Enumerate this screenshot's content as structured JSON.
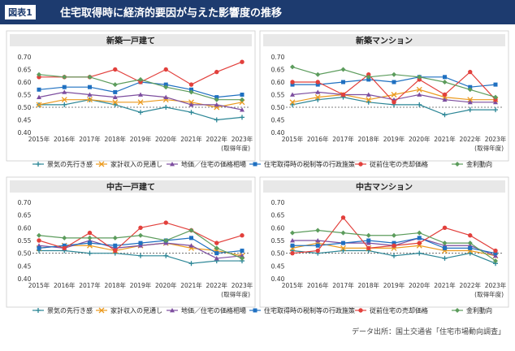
{
  "header": {
    "label": "図表1",
    "title": "住宅取得時に経済的要因が与えた影響度の推移"
  },
  "source": "データ出所：国土交通省「住宅市場動向調査」",
  "chart_data": [
    {
      "type": "line",
      "title": "新築一戸建て",
      "xlabel": "(取得年度)",
      "categories": [
        "2015年",
        "2016年",
        "2017年",
        "2018年",
        "2019年",
        "2020年",
        "2021年",
        "2022年",
        "2023年"
      ],
      "ylim": [
        0.4,
        0.7
      ],
      "yticks": [
        {
          "value": 0.4,
          "label": "0.40"
        },
        {
          "value": 0.45,
          "label": "0.45"
        },
        {
          "value": 0.5,
          "label": "0.50"
        },
        {
          "value": 0.55,
          "label": "0.55"
        },
        {
          "value": 0.6,
          "label": "0.60"
        },
        {
          "value": 0.65,
          "label": "0.65"
        },
        {
          "value": 0.7,
          "label": "0.70"
        }
      ],
      "reference_line": 0.5,
      "series": [
        {
          "name": "景気の先行き感",
          "color": "#2a8595",
          "values": [
            0.51,
            0.51,
            0.53,
            0.51,
            0.48,
            0.5,
            0.48,
            0.45,
            0.46
          ]
        },
        {
          "name": "家計収入の見通し",
          "color": "#eb9a1e",
          "values": [
            0.51,
            0.53,
            0.53,
            0.52,
            0.52,
            0.53,
            0.52,
            0.5,
            0.52
          ]
        },
        {
          "name": "地価／住宅の価格相場",
          "color": "#7d4e9f",
          "values": [
            0.54,
            0.56,
            0.55,
            0.54,
            0.55,
            0.54,
            0.51,
            0.51,
            0.49
          ]
        },
        {
          "name": "住宅取得時の税制等の行政施策",
          "color": "#1f70c1",
          "values": [
            0.57,
            0.58,
            0.58,
            0.56,
            0.6,
            0.59,
            0.57,
            0.54,
            0.55
          ]
        },
        {
          "name": "従前住宅の売却価格",
          "color": "#e2403c",
          "values": [
            0.62,
            0.62,
            0.62,
            0.65,
            0.6,
            0.65,
            0.59,
            0.64,
            0.68
          ]
        },
        {
          "name": "金利動向",
          "color": "#5c9c5c",
          "values": [
            0.63,
            0.62,
            0.62,
            0.59,
            0.61,
            0.58,
            0.56,
            0.53,
            0.53
          ]
        }
      ]
    },
    {
      "type": "line",
      "title": "新築マンション",
      "xlabel": "(取得年度)",
      "categories": [
        "2015年",
        "2016年",
        "2017年",
        "2018年",
        "2019年",
        "2020年",
        "2021年",
        "2022年",
        "2023年"
      ],
      "ylim": [
        0.4,
        0.7
      ],
      "yticks": [
        {
          "value": 0.4,
          "label": "0.40"
        },
        {
          "value": 0.45,
          "label": "0.45"
        },
        {
          "value": 0.5,
          "label": "0.50"
        },
        {
          "value": 0.55,
          "label": "0.55"
        },
        {
          "value": 0.6,
          "label": "0.60"
        },
        {
          "value": 0.65,
          "label": "0.65"
        },
        {
          "value": 0.7,
          "label": "0.70"
        }
      ],
      "reference_line": 0.5,
      "series": [
        {
          "name": "景気の先行き感",
          "color": "#2a8595",
          "values": [
            0.51,
            0.53,
            0.54,
            0.52,
            0.51,
            0.51,
            0.47,
            0.49,
            0.49
          ]
        },
        {
          "name": "家計収入の見通し",
          "color": "#eb9a1e",
          "values": [
            0.52,
            0.54,
            0.55,
            0.53,
            0.55,
            0.57,
            0.54,
            0.53,
            0.53
          ]
        },
        {
          "name": "地価／住宅の価格相場",
          "color": "#7d4e9f",
          "values": [
            0.55,
            0.56,
            0.55,
            0.55,
            0.53,
            0.55,
            0.53,
            0.52,
            0.52
          ]
        },
        {
          "name": "住宅取得時の税制等の行政施策",
          "color": "#1f70c1",
          "values": [
            0.59,
            0.59,
            0.6,
            0.61,
            0.6,
            0.62,
            0.62,
            0.58,
            0.59
          ]
        },
        {
          "name": "従前住宅の売却価格",
          "color": "#e2403c",
          "values": [
            0.6,
            0.6,
            0.55,
            0.63,
            0.52,
            0.61,
            0.55,
            0.64,
            0.53
          ]
        },
        {
          "name": "金利動向",
          "color": "#5c9c5c",
          "values": [
            0.66,
            0.63,
            0.65,
            0.62,
            0.63,
            0.62,
            0.6,
            0.57,
            0.54
          ]
        }
      ]
    },
    {
      "type": "line",
      "title": "中古一戸建て",
      "xlabel": "(取得年度)",
      "categories": [
        "2015年",
        "2016年",
        "2017年",
        "2018年",
        "2019年",
        "2020年",
        "2021年",
        "2022年",
        "2023年"
      ],
      "ylim": [
        0.4,
        0.7
      ],
      "yticks": [
        {
          "value": 0.4,
          "label": "0.40"
        },
        {
          "value": 0.45,
          "label": "0.45"
        },
        {
          "value": 0.5,
          "label": "0.50"
        },
        {
          "value": 0.55,
          "label": "0.55"
        },
        {
          "value": 0.6,
          "label": "0.60"
        },
        {
          "value": 0.65,
          "label": "0.65"
        },
        {
          "value": 0.7,
          "label": "0.70"
        }
      ],
      "reference_line": 0.5,
      "series": [
        {
          "name": "景気の先行き感",
          "color": "#2a8595",
          "values": [
            0.51,
            0.51,
            0.5,
            0.5,
            0.49,
            0.49,
            0.46,
            0.47,
            0.47
          ]
        },
        {
          "name": "家計収入の見通し",
          "color": "#eb9a1e",
          "values": [
            0.52,
            0.53,
            0.53,
            0.51,
            0.53,
            0.54,
            0.52,
            0.51,
            0.49
          ]
        },
        {
          "name": "地価／住宅の価格相場",
          "color": "#7d4e9f",
          "values": [
            0.53,
            0.52,
            0.55,
            0.52,
            0.53,
            0.54,
            0.53,
            0.48,
            0.49
          ]
        },
        {
          "name": "住宅取得時の税制等の行政施策",
          "color": "#1f70c1",
          "values": [
            0.52,
            0.53,
            0.54,
            0.53,
            0.54,
            0.55,
            0.56,
            0.5,
            0.51
          ]
        },
        {
          "name": "従前住宅の売却価格",
          "color": "#e2403c",
          "values": [
            0.55,
            0.52,
            0.58,
            0.51,
            0.6,
            0.62,
            0.59,
            0.54,
            0.57
          ]
        },
        {
          "name": "金利動向",
          "color": "#5c9c5c",
          "values": [
            0.57,
            0.56,
            0.56,
            0.56,
            0.57,
            0.55,
            0.59,
            0.52,
            0.48
          ]
        }
      ]
    },
    {
      "type": "line",
      "title": "中古マンション",
      "xlabel": "(取得年度)",
      "categories": [
        "2015年",
        "2016年",
        "2017年",
        "2018年",
        "2019年",
        "2020年",
        "2021年",
        "2022年",
        "2023年"
      ],
      "ylim": [
        0.4,
        0.7
      ],
      "yticks": [
        {
          "value": 0.4,
          "label": "0.40"
        },
        {
          "value": 0.45,
          "label": "0.45"
        },
        {
          "value": 0.5,
          "label": "0.50"
        },
        {
          "value": 0.55,
          "label": "0.55"
        },
        {
          "value": 0.6,
          "label": "0.60"
        },
        {
          "value": 0.65,
          "label": "0.65"
        },
        {
          "value": 0.7,
          "label": "0.70"
        }
      ],
      "reference_line": 0.5,
      "series": [
        {
          "name": "景気の先行き感",
          "color": "#2a8595",
          "values": [
            0.51,
            0.5,
            0.51,
            0.51,
            0.49,
            0.5,
            0.48,
            0.5,
            0.46
          ]
        },
        {
          "name": "家計収入の見通し",
          "color": "#eb9a1e",
          "values": [
            0.52,
            0.54,
            0.52,
            0.52,
            0.52,
            0.53,
            0.51,
            0.51,
            0.49
          ]
        },
        {
          "name": "地価／住宅の価格相場",
          "color": "#7d4e9f",
          "values": [
            0.55,
            0.55,
            0.54,
            0.54,
            0.53,
            0.56,
            0.53,
            0.53,
            0.49
          ]
        },
        {
          "name": "住宅取得時の税制等の行政施策",
          "color": "#1f70c1",
          "values": [
            0.53,
            0.53,
            0.54,
            0.55,
            0.54,
            0.56,
            0.52,
            0.52,
            0.5
          ]
        },
        {
          "name": "従前住宅の売却価格",
          "color": "#e2403c",
          "values": [
            0.5,
            0.51,
            0.64,
            0.52,
            0.53,
            0.54,
            0.6,
            0.57,
            0.51
          ]
        },
        {
          "name": "金利動向",
          "color": "#5c9c5c",
          "values": [
            0.58,
            0.59,
            0.58,
            0.57,
            0.57,
            0.58,
            0.54,
            0.54,
            0.47
          ]
        }
      ]
    }
  ]
}
